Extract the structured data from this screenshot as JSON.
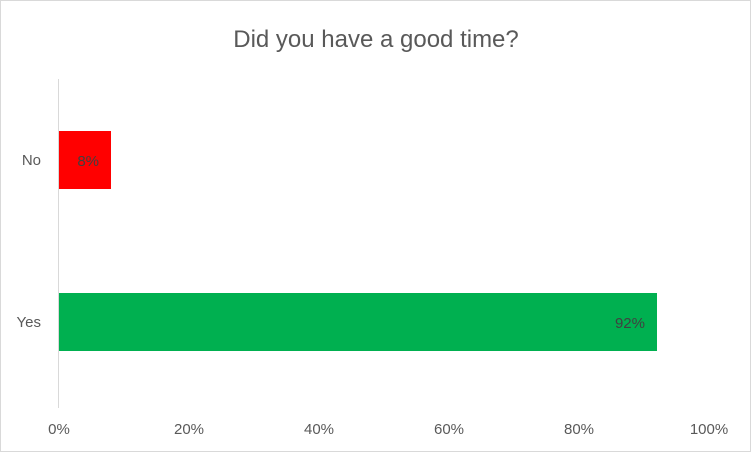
{
  "chart_data": {
    "type": "bar",
    "orientation": "horizontal",
    "title": "Did you have a good time?",
    "categories": [
      "No",
      "Yes"
    ],
    "values": [
      8,
      92
    ],
    "value_labels": [
      "8%",
      "92%"
    ],
    "bar_colors": [
      "#ff0000",
      "#00b050"
    ],
    "xlim": [
      0,
      100
    ],
    "xticks": [
      0,
      20,
      40,
      60,
      80,
      100
    ],
    "xtick_labels": [
      "0%",
      "20%",
      "40%",
      "60%",
      "80%",
      "100%"
    ],
    "xlabel": "",
    "ylabel": "",
    "grid": false,
    "legend": "none"
  }
}
